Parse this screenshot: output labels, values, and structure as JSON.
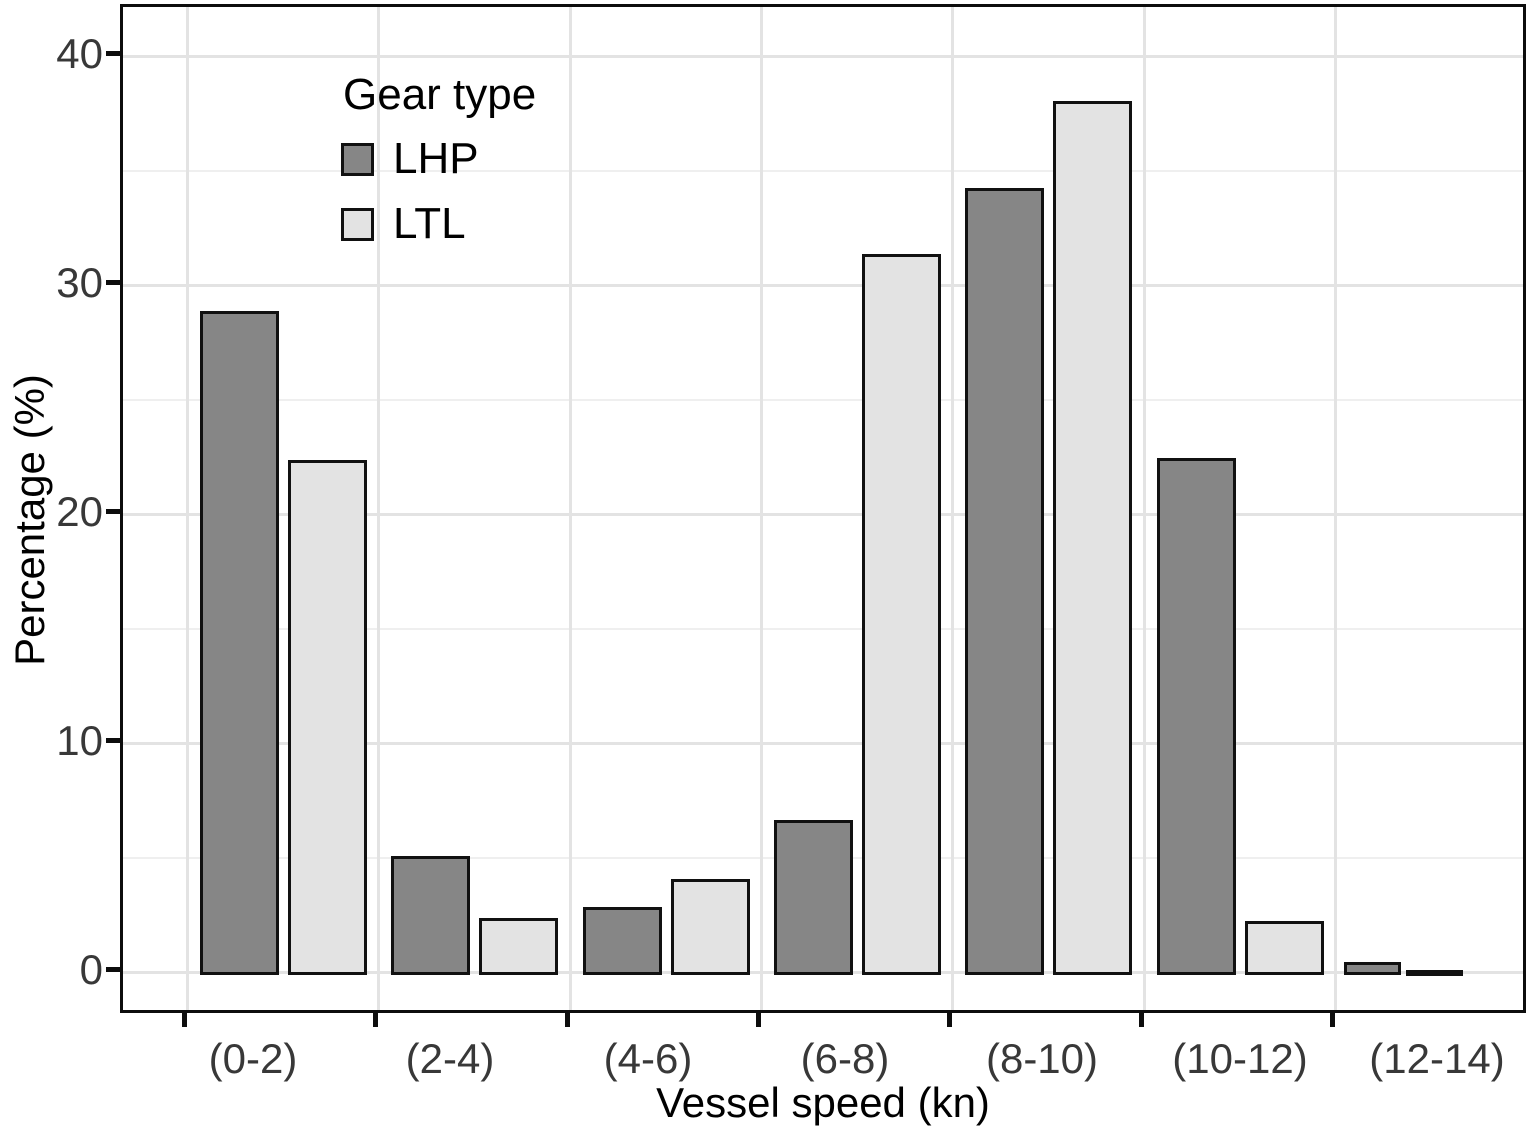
{
  "chart_data": {
    "type": "bar",
    "title": "",
    "xlabel": "Vessel speed (kn)",
    "ylabel": "Percentage (%)",
    "categories": [
      "(0-2)",
      "(2-4)",
      "(4-6)",
      "(6-8)",
      "(8-10)",
      "(10-12)",
      "(12-14)"
    ],
    "series": [
      {
        "name": "LHP",
        "color": "#868686",
        "values": [
          28.8,
          5.0,
          2.8,
          6.6,
          34.2,
          22.4,
          0.4
        ]
      },
      {
        "name": "LTL",
        "color": "#e3e3e3",
        "values": [
          22.3,
          2.3,
          4.0,
          31.3,
          38.0,
          2.2,
          0.05
        ]
      }
    ],
    "ylim": [
      0,
      42
    ],
    "yticks": [
      0,
      10,
      20,
      30,
      40
    ],
    "grid": true,
    "legend": {
      "title": "Gear type",
      "position": "top-left-inside"
    },
    "bar_outline_color": "#111111",
    "gridline_color": "#e3e3e3",
    "panel_border_color": "#0d0d0d"
  }
}
